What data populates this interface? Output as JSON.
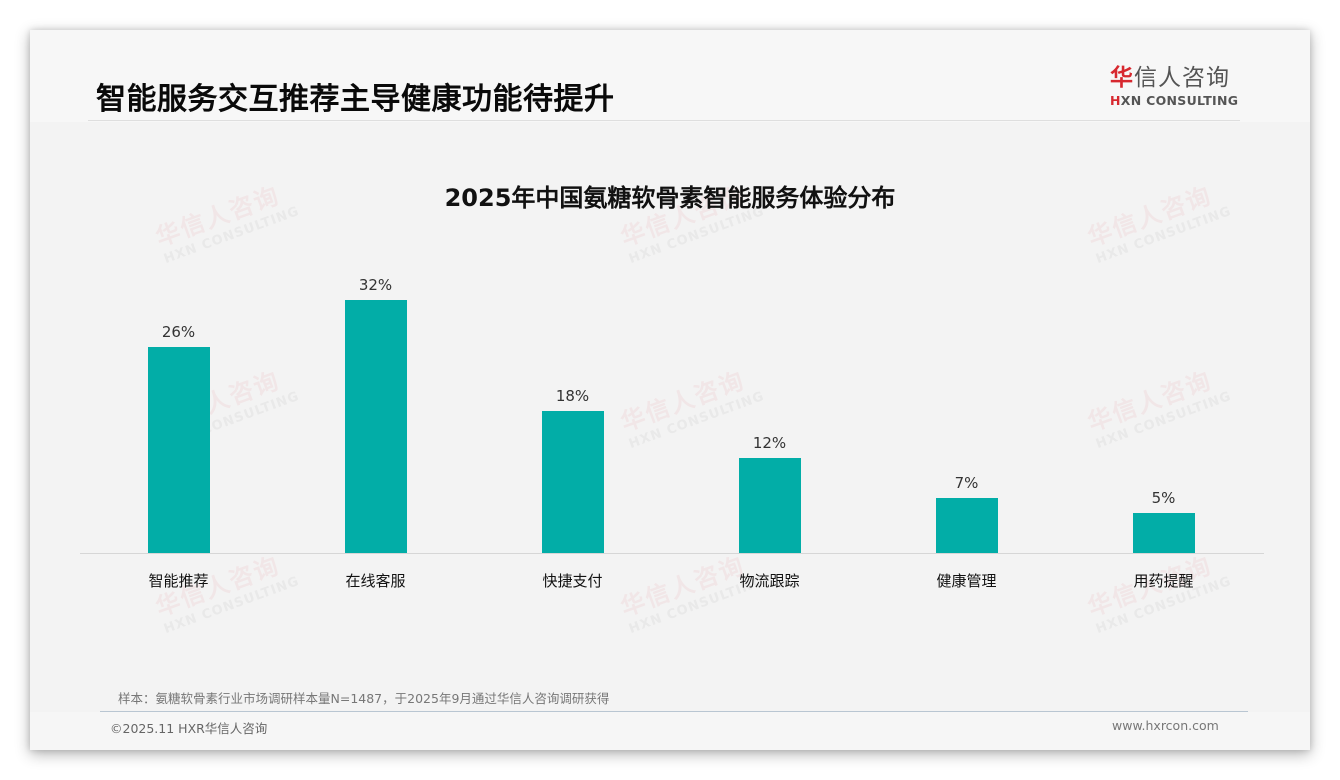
{
  "header": {
    "title": "智能服务交互推荐主导健康功能待提升",
    "logo": {
      "cn_accent": "华",
      "cn_rest": "信人咨询",
      "en_accent": "H",
      "en_rest": "XN CONSULTING",
      "accent_color": "#d7282f"
    }
  },
  "watermark": {
    "cn": "华信人咨询",
    "en": "HXN CONSULTING"
  },
  "chart_data": {
    "type": "bar",
    "title": "2025年中国氨糖软骨素智能服务体验分布",
    "categories": [
      "智能推荐",
      "在线客服",
      "快捷支付",
      "物流跟踪",
      "健康管理",
      "用药提醒"
    ],
    "values": [
      26,
      32,
      18,
      12,
      7,
      5
    ],
    "value_labels": [
      "26%",
      "32%",
      "18%",
      "12%",
      "7%",
      "5%"
    ],
    "unit": "%",
    "xlabel": "",
    "ylabel": "",
    "ylim": [
      0,
      32
    ],
    "grid": false,
    "legend": null,
    "bar_color": "#02ada7"
  },
  "footer": {
    "source_note": "样本：氨糖软骨素行业市场调研样本量N=1487，于2025年9月通过华信人咨询调研获得",
    "copyright": "©2025.11 HXR华信人咨询",
    "website": "www.hxrcon.com"
  }
}
